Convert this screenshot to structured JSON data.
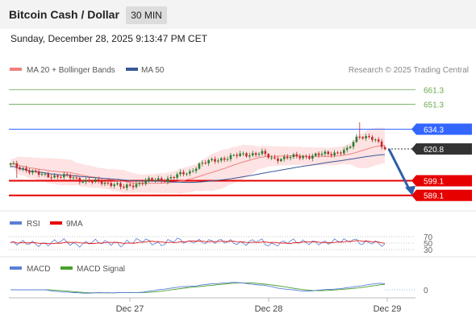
{
  "header": {
    "title": "Bitcoin Cash / Dollar",
    "timeframe": "30 MIN"
  },
  "datetime": "Sunday, December 28, 2025 9:13:47 PM CET",
  "legend": {
    "ma_bb": "MA 20 + Bollinger Bands",
    "ma50": "MA 50",
    "source": "Research © 2025 Trading Central"
  },
  "rsi_legend": {
    "rsi": "RSI",
    "ma": "9MA"
  },
  "macd_legend": {
    "macd": "MACD",
    "signal": "MACD Signal"
  },
  "colors": {
    "bull": "#2e7d32",
    "bear": "#c62828",
    "ma20": "#f08080",
    "bollinger_fill": "#fde3e3",
    "ma50": "#3b5998",
    "resistance": "#6aa84f",
    "pivot": "#3366ff",
    "support": "#e60000",
    "current": "#333333",
    "arrow": "#2e5fa8",
    "rsi": "#5b7fd6",
    "rsi_ma": "#e60000",
    "macd": "#5b7fd6",
    "macd_signal": "#4aa02c"
  },
  "chart_data": {
    "type": "candlestick",
    "y_range": [
      584,
      667
    ],
    "x_labels": [
      "Dec 27",
      "Dec 28",
      "Dec 29"
    ],
    "levels": [
      {
        "value": 661.3,
        "label": "661.3",
        "kind": "resistance"
      },
      {
        "value": 651.3,
        "label": "651.3",
        "kind": "resistance"
      },
      {
        "value": 634.3,
        "label": "634.3",
        "kind": "pivot"
      },
      {
        "value": 620.8,
        "label": "620.8",
        "kind": "current"
      },
      {
        "value": 599.1,
        "label": "599.1",
        "kind": "support"
      },
      {
        "value": 589.1,
        "label": "589.1",
        "kind": "support"
      }
    ],
    "forecast": {
      "from": 620.8,
      "to": 589.1
    },
    "rsi": {
      "levels": [
        "70",
        "50",
        "30"
      ]
    },
    "macd": {
      "levels": [
        "0"
      ]
    }
  }
}
